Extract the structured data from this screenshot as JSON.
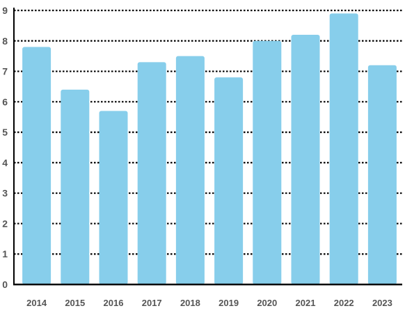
{
  "chart_data": {
    "type": "bar",
    "title": "",
    "xlabel": "",
    "ylabel": "",
    "categories": [
      "2014",
      "2015",
      "2016",
      "2017",
      "2018",
      "2019",
      "2020",
      "2021",
      "2022",
      "2023"
    ],
    "values": [
      7.8,
      6.4,
      5.7,
      7.3,
      7.5,
      6.8,
      8.0,
      8.2,
      8.9,
      7.2
    ],
    "ylim": [
      0,
      9
    ],
    "yticks": [
      "0",
      "1",
      "2",
      "3",
      "4",
      "5",
      "6",
      "7",
      "8",
      "9"
    ],
    "grid": "horizontal dotted",
    "legend": "none",
    "colors": {
      "bar": "#87CEEB",
      "grid": "#000000",
      "axis": "#000000",
      "tick_text": "#555555"
    }
  }
}
